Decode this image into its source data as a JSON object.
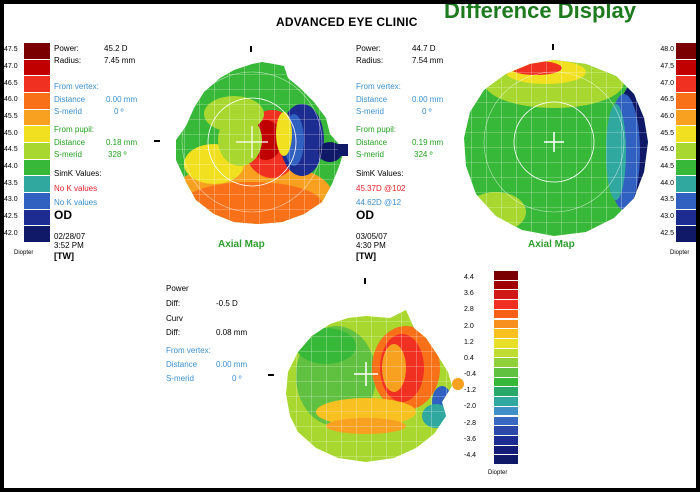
{
  "header": {
    "clinic": "ADVANCED EYE CLINIC",
    "title": "Difference Display"
  },
  "left_scale": {
    "values": [
      "47.5",
      "47.0",
      "46.5",
      "46.0",
      "45.5",
      "45.0",
      "44.5",
      "44.0",
      "43.5",
      "43.0",
      "42.5",
      "42.0"
    ],
    "colors": [
      "#7a0000",
      "#c00000",
      "#f03020",
      "#f87018",
      "#f8a020",
      "#f0e020",
      "#a8d830",
      "#38b838",
      "#30a8a0",
      "#3060c0",
      "#1c2c90",
      "#101868"
    ],
    "unit": "Diopter"
  },
  "right_scale": {
    "values": [
      "48.0",
      "47.5",
      "47.0",
      "46.5",
      "46.0",
      "45.5",
      "45.0",
      "44.5",
      "44.0",
      "43.5",
      "43.0",
      "42.5"
    ],
    "colors": [
      "#7a0000",
      "#c00000",
      "#f03020",
      "#f87018",
      "#f8a020",
      "#f0e020",
      "#a8d830",
      "#38b838",
      "#30a8a0",
      "#3060c0",
      "#1c2c90",
      "#101868"
    ],
    "unit": "Diopter"
  },
  "diff_scale": {
    "values": [
      "4.4",
      "3.6",
      "2.8",
      "2.0",
      "1.2",
      "0.4",
      "-0.4",
      "-1.2",
      "-2.0",
      "-2.8",
      "-3.6",
      "-4.4"
    ],
    "colors": [
      "#7a0000",
      "#a00000",
      "#d01818",
      "#f03020",
      "#f86018",
      "#f89020",
      "#f8c020",
      "#e8e028",
      "#c0dc30",
      "#90d038",
      "#60c040",
      "#38b838",
      "#28a868",
      "#30a8a0",
      "#4090c8",
      "#3868c0",
      "#2c48a8",
      "#1c2c90",
      "#141c78",
      "#101868"
    ],
    "unit": "Diopter"
  },
  "exam1": {
    "power_label": "Power:",
    "power_value": "45.2 D",
    "radius_label": "Radius:",
    "radius_value": "7.45  mm",
    "from_vertex": "From vertex:",
    "distance_label": "Distance",
    "distance_value": "0.00 mm",
    "smerid_label": "S-merid",
    "smerid_value": "0 º",
    "from_pupil": "From pupil:",
    "pupil_distance_label": "Distance",
    "pupil_distance_value": "0.18 mm",
    "pupil_smerid_label": "S-merid",
    "pupil_smerid_value": "328 º",
    "simk_label": "SimK Values:",
    "k1": "No K values",
    "k2": "No K values",
    "eye": "OD",
    "date": "02/28/07",
    "time": "3:52 PM",
    "tech": "[TW]",
    "map_label": "Axial Map"
  },
  "exam2": {
    "power_label": "Power:",
    "power_value": "44.7 D",
    "radius_label": "Radius:",
    "radius_value": "7.54  mm",
    "from_vertex": "From vertex:",
    "distance_label": "Distance",
    "distance_value": "0.00 mm",
    "smerid_label": "S-merid",
    "smerid_value": "0 º",
    "from_pupil": "From pupil:",
    "pupil_distance_label": "Distance",
    "pupil_distance_value": "0.19 mm",
    "pupil_smerid_label": "S-merid",
    "pupil_smerid_value": "324 º",
    "simk_label": "SimK Values:",
    "k1": "45.37D @102",
    "k2": "44.62D @12",
    "eye": "OD",
    "date": "03/05/07",
    "time": "4:30 PM",
    "tech": "[TW]",
    "map_label": "Axial Map"
  },
  "diff": {
    "power_label": "Power",
    "diff_label": "Diff:",
    "power_diff": "-0.5 D",
    "curv_label": "Curv",
    "curv_diff_label": "Diff:",
    "curv_diff": "0.08 mm",
    "from_vertex": "From vertex:",
    "distance_label": "Distance",
    "distance_value": "0.00 mm",
    "smerid_label": "S-merid",
    "smerid_value": "0 º"
  },
  "colors": {
    "title_green": "#1e7a1e",
    "label_blue": "#3a8fcf",
    "map_label_green": "#2d9d2d",
    "k_red": "#e8202a"
  }
}
